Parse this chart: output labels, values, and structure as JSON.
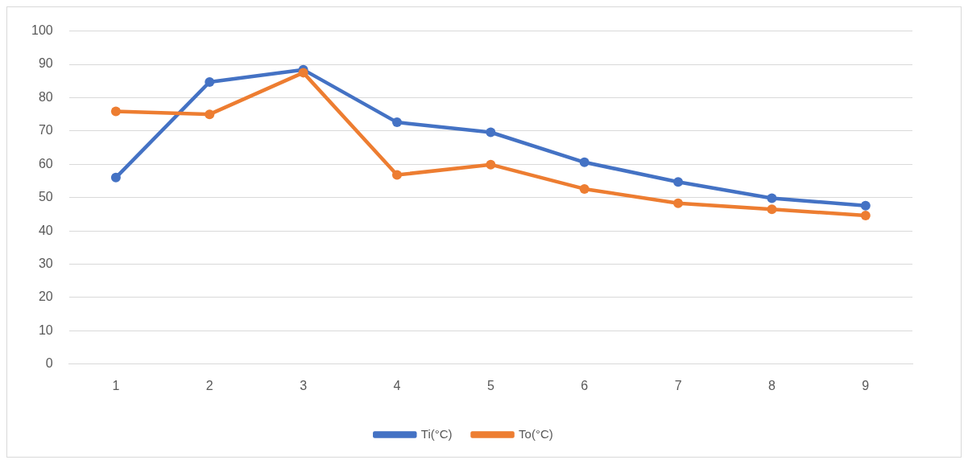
{
  "chart_data": {
    "type": "line",
    "categories": [
      "1",
      "2",
      "3",
      "4",
      "5",
      "6",
      "7",
      "8",
      "9"
    ],
    "series": [
      {
        "name": "Ti(°C)",
        "color": "#4472c4",
        "values": [
          56,
          84.7,
          88.4,
          72.6,
          69.6,
          60.6,
          54.7,
          49.8,
          47.6
        ]
      },
      {
        "name": "To(°C)",
        "color": "#ed7d31",
        "values": [
          75.9,
          75,
          87.5,
          56.8,
          59.9,
          52.6,
          48.3,
          46.5,
          44.6
        ]
      }
    ],
    "ylim": [
      0,
      100
    ],
    "yticks": [
      0,
      10,
      20,
      30,
      40,
      50,
      60,
      70,
      80,
      90,
      100
    ],
    "grid": "y",
    "legend": "bottom",
    "marker": "circle",
    "line_style": "solid"
  }
}
